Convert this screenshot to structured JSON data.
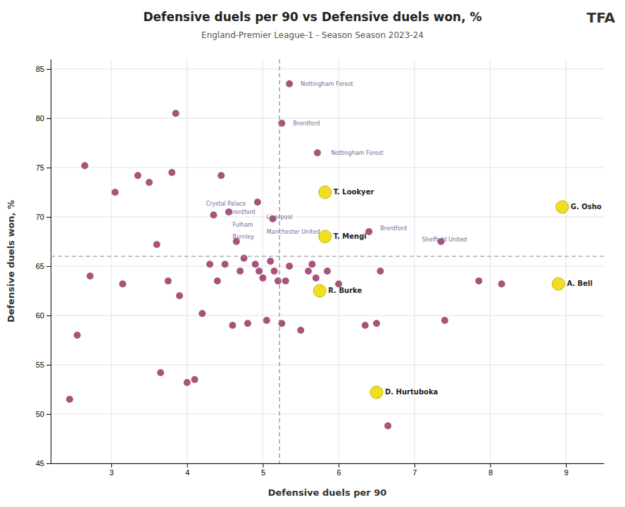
{
  "chart_data": {
    "type": "scatter",
    "title": "Defensive duels per 90 vs Defensive duels won, %",
    "subtitle": "England-Premier League-1 - Season Season 2023-24",
    "x_label": "Defensive duels per 90",
    "y_label": "Defensive duels won, %",
    "logo_text": "TFA",
    "xlim": [
      2.2,
      9.5
    ],
    "ylim": [
      45,
      86
    ],
    "xticks": [
      3,
      4,
      5,
      6,
      7,
      8,
      9
    ],
    "yticks": [
      45,
      50,
      55,
      60,
      65,
      70,
      75,
      80,
      85
    ],
    "grid": true,
    "reference_lines": [
      {
        "axis": "x",
        "value": 5.22
      },
      {
        "axis": "y",
        "value": 66.0
      }
    ],
    "series": [
      {
        "color": "#8b1a52",
        "x": [
          2.45,
          2.55,
          2.65,
          2.72,
          3.05,
          3.15,
          3.35,
          3.5,
          3.6,
          3.65,
          3.75,
          3.8,
          3.85,
          3.9,
          4.0,
          4.1,
          4.2,
          4.3,
          4.35,
          4.4,
          4.45,
          4.5,
          4.55,
          4.6,
          4.65,
          4.7,
          4.75,
          4.8,
          4.9,
          4.95,
          5.0,
          5.05,
          5.1,
          5.15,
          5.2,
          5.25,
          5.3,
          5.35,
          5.5,
          5.6,
          5.65,
          5.7,
          5.85,
          6.0,
          6.35,
          6.5,
          6.55,
          6.65,
          7.4,
          7.85,
          8.15
        ],
        "values": [
          51.5,
          58.0,
          75.2,
          64.0,
          72.5,
          63.2,
          74.2,
          73.5,
          67.2,
          54.2,
          63.5,
          74.5,
          80.5,
          62.0,
          53.2,
          53.5,
          60.2,
          65.2,
          70.2,
          63.5,
          74.2,
          65.2,
          70.5,
          59.0,
          67.5,
          64.5,
          65.8,
          59.2,
          65.2,
          64.5,
          63.8,
          59.5,
          65.5,
          64.5,
          63.5,
          59.2,
          63.5,
          65.0,
          58.5,
          64.5,
          65.2,
          63.8,
          64.5,
          63.2,
          59.0,
          59.2,
          64.5,
          48.8,
          59.5,
          63.5,
          63.2
        ]
      },
      {
        "color": "#8b1a52",
        "x": [
          5.35,
          5.25,
          5.72,
          4.93,
          5.13,
          6.4,
          7.35
        ],
        "values": [
          83.5,
          79.5,
          76.5,
          71.5,
          69.8,
          68.5,
          67.5
        ]
      },
      {
        "color": "#f0df20",
        "x": [
          5.82,
          5.82,
          5.75,
          6.5,
          8.95,
          8.9
        ],
        "values": [
          72.5,
          68.0,
          62.5,
          52.2,
          71.0,
          63.2
        ],
        "point_labels": [
          "T. Lookyer",
          "T. Mengi",
          "R. Burke",
          "D. Hurtuboka",
          "G. Osho",
          "A. Bell"
        ]
      }
    ],
    "annotations": [
      {
        "x": 5.5,
        "y": 83.5,
        "text": "Nottingham Forest"
      },
      {
        "x": 5.4,
        "y": 79.5,
        "text": "Brentford"
      },
      {
        "x": 5.9,
        "y": 76.5,
        "text": "Nottingham Forest"
      },
      {
        "x": 4.25,
        "y": 71.3,
        "text": "Crystal Palace"
      },
      {
        "x": 4.55,
        "y": 70.5,
        "text": "Brentford"
      },
      {
        "x": 4.6,
        "y": 69.2,
        "text": "Fulham"
      },
      {
        "x": 4.6,
        "y": 68.0,
        "text": "Burnley"
      },
      {
        "x": 5.05,
        "y": 70.0,
        "text": "Liverpool"
      },
      {
        "x": 5.05,
        "y": 68.5,
        "text": "Manchester United"
      },
      {
        "x": 6.55,
        "y": 68.8,
        "text": "Brentford"
      },
      {
        "x": 7.1,
        "y": 67.7,
        "text": "Sheffield United"
      }
    ]
  }
}
